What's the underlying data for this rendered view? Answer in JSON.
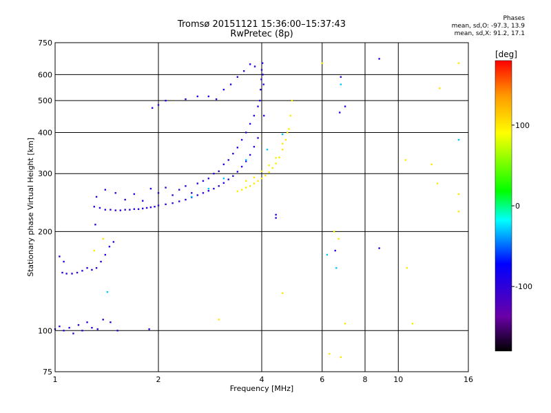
{
  "header": {
    "title": "Tromsø 20151121 15:36:00–15:37:43",
    "subtitle": "RwPretec (8p)"
  },
  "stats": {
    "heading": "Phases",
    "line_o": "mean, sd,O: -97.3, 13.9",
    "line_x": "mean, sd,X:  91.2, 17.1"
  },
  "colorbar": {
    "label": "[deg]",
    "range": [
      -180,
      180
    ],
    "tick_labels": [
      "100",
      "0",
      "-100"
    ],
    "tick_values": [
      100,
      0,
      -100
    ]
  },
  "chart_data": {
    "type": "scatter",
    "title": "Tromsø 20151121 15:36:00–15:37:43",
    "subtitle": "RwPretec (8p)",
    "xlabel": "Frequency [MHz]",
    "ylabel": "Stationary phase Virtual Height [km]",
    "x_scale": "log",
    "y_scale": "log",
    "xlim": [
      1,
      16
    ],
    "ylim": [
      75,
      750
    ],
    "x_ticks": [
      1,
      2,
      4,
      6,
      8,
      10,
      16
    ],
    "x_tick_labels": [
      "1",
      "2",
      "4",
      "6",
      "8",
      "10",
      "16"
    ],
    "y_ticks": [
      75,
      100,
      200,
      300,
      400,
      500,
      600,
      750
    ],
    "y_tick_labels": [
      "75",
      "100",
      "200",
      "300",
      "400",
      "500",
      "600",
      "750"
    ],
    "grid": true,
    "color_axis": "phase [deg]",
    "series": [
      {
        "mode": "O",
        "phase": -100,
        "points": [
          [
            1.0,
            101
          ],
          [
            1.03,
            103
          ],
          [
            1.06,
            100
          ],
          [
            1.1,
            102
          ],
          [
            1.13,
            98
          ],
          [
            1.17,
            104
          ],
          [
            1.2,
            100
          ],
          [
            1.24,
            106
          ],
          [
            1.28,
            102
          ],
          [
            1.33,
            101
          ],
          [
            1.38,
            108
          ],
          [
            1.45,
            106
          ],
          [
            1.52,
            100
          ],
          [
            1.88,
            101
          ],
          [
            1.05,
            150
          ],
          [
            1.08,
            149
          ],
          [
            1.12,
            149
          ],
          [
            1.16,
            150
          ],
          [
            1.2,
            152
          ],
          [
            1.24,
            155
          ],
          [
            1.28,
            153
          ],
          [
            1.32,
            155
          ],
          [
            1.36,
            162
          ],
          [
            1.4,
            170
          ],
          [
            1.44,
            180
          ],
          [
            1.48,
            186
          ],
          [
            1.03,
            168
          ],
          [
            1.06,
            162
          ],
          [
            1.31,
            210
          ],
          [
            1.3,
            238
          ],
          [
            1.35,
            236
          ],
          [
            1.4,
            233
          ],
          [
            1.45,
            233
          ],
          [
            1.5,
            232
          ],
          [
            1.55,
            232
          ],
          [
            1.6,
            233
          ],
          [
            1.65,
            233
          ],
          [
            1.7,
            234
          ],
          [
            1.75,
            234
          ],
          [
            1.8,
            235
          ],
          [
            1.85,
            236
          ],
          [
            1.9,
            237
          ],
          [
            1.95,
            238
          ],
          [
            2.0,
            240
          ],
          [
            2.1,
            242
          ],
          [
            2.2,
            244
          ],
          [
            2.3,
            247
          ],
          [
            2.4,
            250
          ],
          [
            2.5,
            254
          ],
          [
            2.6,
            258
          ],
          [
            2.7,
            262
          ],
          [
            2.8,
            266
          ],
          [
            2.9,
            270
          ],
          [
            3.0,
            275
          ],
          [
            3.1,
            281
          ],
          [
            3.2,
            288
          ],
          [
            3.3,
            295
          ],
          [
            3.4,
            304
          ],
          [
            3.5,
            315
          ],
          [
            3.6,
            327
          ],
          [
            3.7,
            342
          ],
          [
            3.8,
            362
          ],
          [
            3.9,
            385
          ],
          [
            1.32,
            255
          ],
          [
            1.4,
            268
          ],
          [
            1.5,
            262
          ],
          [
            1.6,
            250
          ],
          [
            1.7,
            260
          ],
          [
            1.8,
            248
          ],
          [
            1.9,
            270
          ],
          [
            2.0,
            262
          ],
          [
            2.1,
            272
          ],
          [
            2.2,
            258
          ],
          [
            2.3,
            268
          ],
          [
            2.4,
            275
          ],
          [
            2.5,
            262
          ],
          [
            2.6,
            280
          ],
          [
            2.7,
            285
          ],
          [
            2.8,
            290
          ],
          [
            2.9,
            300
          ],
          [
            3.0,
            305
          ],
          [
            3.1,
            320
          ],
          [
            3.2,
            330
          ],
          [
            3.3,
            345
          ],
          [
            3.4,
            360
          ],
          [
            3.5,
            380
          ],
          [
            3.6,
            400
          ],
          [
            3.7,
            425
          ],
          [
            3.8,
            450
          ],
          [
            3.9,
            480
          ],
          [
            3.95,
            500
          ],
          [
            3.97,
            540
          ],
          [
            3.99,
            580
          ],
          [
            4.0,
            620
          ],
          [
            4.02,
            650
          ],
          [
            4.03,
            600
          ],
          [
            4.05,
            560
          ],
          [
            4.06,
            450
          ],
          [
            1.92,
            475
          ],
          [
            2.0,
            485
          ],
          [
            2.1,
            500
          ],
          [
            2.4,
            505
          ],
          [
            2.6,
            515
          ],
          [
            2.8,
            515
          ],
          [
            2.95,
            505
          ],
          [
            3.1,
            540
          ],
          [
            3.25,
            560
          ],
          [
            3.4,
            590
          ],
          [
            3.55,
            615
          ],
          [
            3.7,
            645
          ],
          [
            3.82,
            635
          ],
          [
            4.4,
            225
          ],
          [
            4.4,
            220
          ],
          [
            6.55,
            175
          ],
          [
            8.8,
            178
          ],
          [
            8.8,
            670
          ],
          [
            6.8,
            590
          ],
          [
            6.75,
            460
          ],
          [
            7.0,
            480
          ]
        ]
      },
      {
        "mode": "X",
        "phase": 100,
        "points": [
          [
            3.4,
            265
          ],
          [
            3.5,
            268
          ],
          [
            3.6,
            272
          ],
          [
            3.7,
            275
          ],
          [
            3.8,
            280
          ],
          [
            3.9,
            285
          ],
          [
            4.0,
            290
          ],
          [
            4.1,
            296
          ],
          [
            4.2,
            303
          ],
          [
            4.3,
            312
          ],
          [
            4.4,
            322
          ],
          [
            4.5,
            336
          ],
          [
            4.6,
            355
          ],
          [
            4.7,
            380
          ],
          [
            4.8,
            410
          ],
          [
            4.85,
            450
          ],
          [
            4.9,
            500
          ],
          [
            3.6,
            285
          ],
          [
            3.8,
            292
          ],
          [
            4.0,
            305
          ],
          [
            4.2,
            318
          ],
          [
            4.4,
            335
          ],
          [
            4.6,
            370
          ],
          [
            4.75,
            400
          ],
          [
            1.3,
            175
          ],
          [
            1.38,
            190
          ],
          [
            6.5,
            200
          ],
          [
            6.7,
            190
          ],
          [
            6.0,
            650
          ],
          [
            10.5,
            330
          ],
          [
            12.5,
            320
          ],
          [
            13.0,
            280
          ],
          [
            15.0,
            260
          ],
          [
            15.0,
            230
          ],
          [
            15.0,
            650
          ],
          [
            13.2,
            545
          ],
          [
            4.6,
            130
          ],
          [
            3.0,
            108
          ],
          [
            6.3,
            85
          ],
          [
            6.8,
            83
          ],
          [
            7.0,
            105
          ],
          [
            10.6,
            155
          ],
          [
            11.0,
            105
          ]
        ]
      },
      {
        "mode": "other",
        "phase": -30,
        "points": [
          [
            1.42,
            131
          ],
          [
            2.5,
            255
          ],
          [
            2.8,
            270
          ],
          [
            3.1,
            290
          ],
          [
            3.6,
            330
          ],
          [
            4.15,
            355
          ],
          [
            4.6,
            395
          ],
          [
            6.2,
            170
          ],
          [
            6.6,
            155
          ],
          [
            6.8,
            560
          ],
          [
            15.0,
            380
          ]
        ]
      }
    ]
  }
}
